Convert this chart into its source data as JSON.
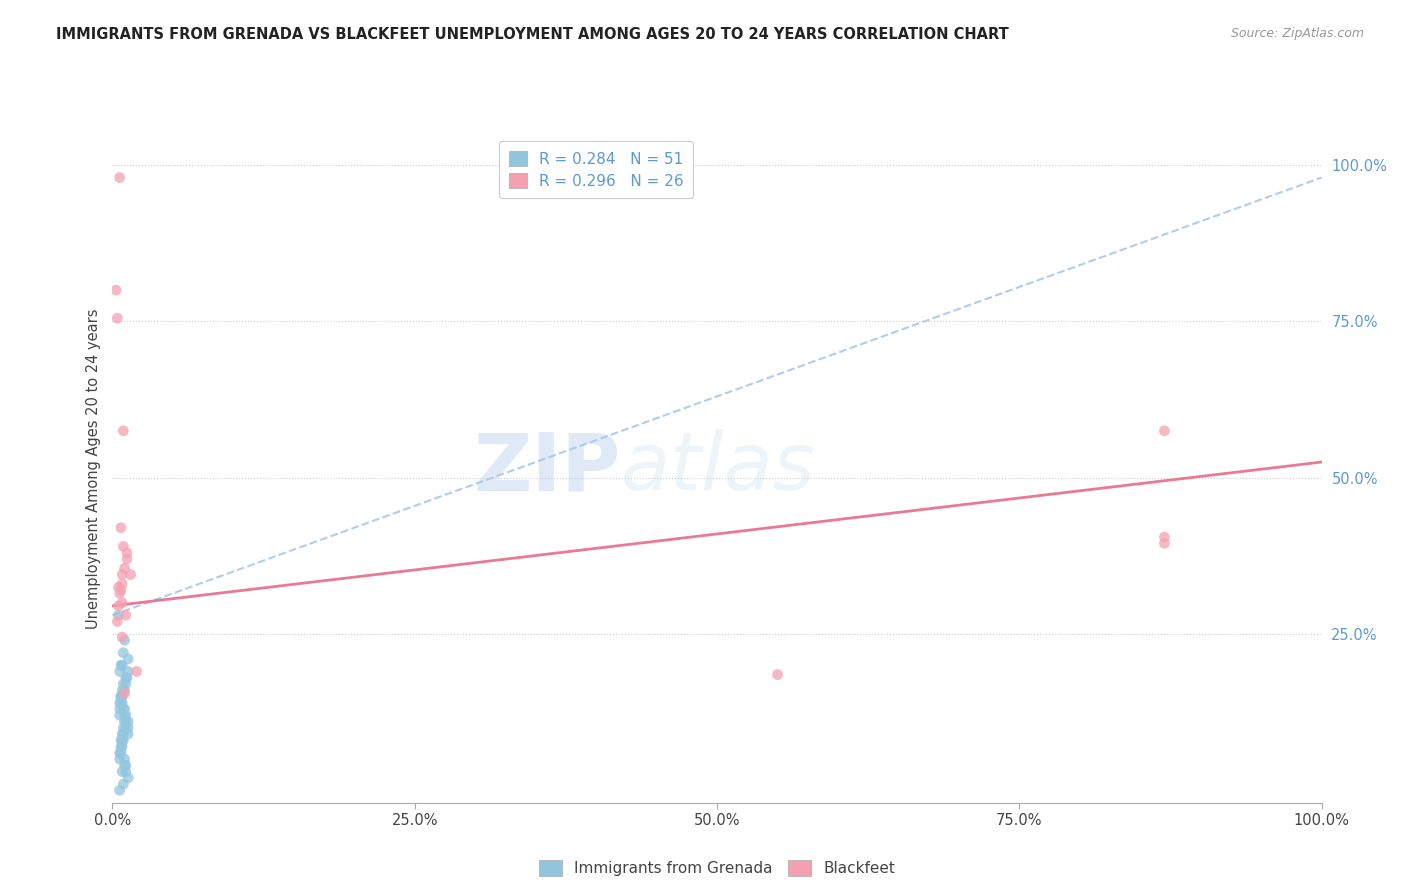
{
  "title": "IMMIGRANTS FROM GRENADA VS BLACKFEET UNEMPLOYMENT AMONG AGES 20 TO 24 YEARS CORRELATION CHART",
  "source": "Source: ZipAtlas.com",
  "ylabel": "Unemployment Among Ages 20 to 24 years",
  "legend_label1": "Immigrants from Grenada",
  "legend_label2": "Blackfeet",
  "R1": 0.284,
  "N1": 51,
  "R2": 0.296,
  "N2": 26,
  "color1": "#92c5de",
  "color2": "#f4a0b0",
  "trend1_color": "#a8c8e8",
  "trend2_color": "#e87a94",
  "background": "#ffffff",
  "watermark_zip": "ZIP",
  "watermark_atlas": "atlas",
  "xlim": [
    0.0,
    1.0
  ],
  "ylim": [
    -0.02,
    1.05
  ],
  "xticks": [
    0.0,
    0.25,
    0.5,
    0.75,
    1.0
  ],
  "xtick_labels": [
    "0.0%",
    "25.0%",
    "50.0%",
    "75.0%",
    "100.0%"
  ],
  "ytick_labels": [
    "25.0%",
    "50.0%",
    "75.0%",
    "100.0%"
  ],
  "ytick_positions": [
    0.25,
    0.5,
    0.75,
    1.0
  ],
  "blue_x": [
    0.005,
    0.008,
    0.01,
    0.012,
    0.007,
    0.009,
    0.011,
    0.006,
    0.013,
    0.008,
    0.01,
    0.007,
    0.009,
    0.011,
    0.006,
    0.008,
    0.013,
    0.01,
    0.007,
    0.009,
    0.011,
    0.006,
    0.008,
    0.013,
    0.01,
    0.007,
    0.009,
    0.011,
    0.006,
    0.008,
    0.013,
    0.01,
    0.007,
    0.009,
    0.011,
    0.006,
    0.008,
    0.013,
    0.01,
    0.007,
    0.009,
    0.011,
    0.006,
    0.008,
    0.013,
    0.01,
    0.007,
    0.009,
    0.011,
    0.006,
    0.008
  ],
  "blue_y": [
    0.28,
    0.2,
    0.24,
    0.18,
    0.15,
    0.22,
    0.17,
    0.19,
    0.21,
    0.14,
    0.16,
    0.2,
    0.13,
    0.18,
    0.12,
    0.15,
    0.19,
    0.11,
    0.14,
    0.17,
    0.1,
    0.13,
    0.16,
    0.09,
    0.12,
    0.15,
    0.08,
    0.11,
    0.14,
    0.07,
    0.1,
    0.13,
    0.06,
    0.09,
    0.12,
    0.05,
    0.08,
    0.11,
    0.04,
    0.07,
    0.1,
    0.03,
    0.06,
    0.09,
    0.02,
    0.05,
    0.08,
    0.01,
    0.04,
    0.0,
    0.03
  ],
  "pink_x": [
    0.005,
    0.01,
    0.007,
    0.008,
    0.012,
    0.015,
    0.006,
    0.009,
    0.004,
    0.011,
    0.008,
    0.003,
    0.02,
    0.006,
    0.009,
    0.007,
    0.012,
    0.005,
    0.008,
    0.004,
    0.87,
    0.87,
    0.55,
    0.87,
    0.008,
    0.01
  ],
  "pink_y": [
    0.295,
    0.355,
    0.42,
    0.3,
    0.37,
    0.345,
    0.315,
    0.39,
    0.27,
    0.28,
    0.33,
    0.8,
    0.19,
    0.98,
    0.575,
    0.32,
    0.38,
    0.325,
    0.345,
    0.755,
    0.575,
    0.395,
    0.185,
    0.405,
    0.245,
    0.155
  ],
  "blue_trend_x": [
    0.0,
    1.0
  ],
  "blue_trend_y": [
    0.28,
    0.98
  ],
  "pink_trend_x": [
    0.0,
    1.0
  ],
  "pink_trend_y": [
    0.295,
    0.525
  ]
}
